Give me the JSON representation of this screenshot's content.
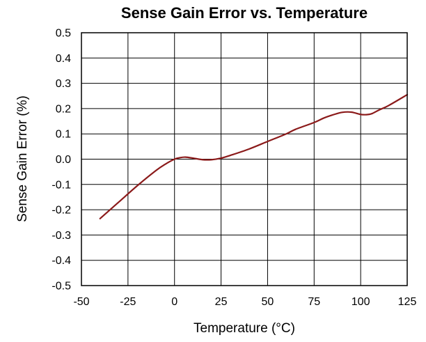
{
  "chart_data": {
    "type": "line",
    "title": "Sense Gain Error vs. Temperature",
    "xlabel": "Temperature (°C)",
    "ylabel": "Sense Gain Error (%)",
    "xlim": [
      -50,
      125
    ],
    "ylim": [
      -0.5,
      0.5
    ],
    "xticks": [
      -50,
      -25,
      0,
      25,
      50,
      75,
      100,
      125
    ],
    "yticks": [
      -0.5,
      -0.4,
      -0.3,
      -0.2,
      -0.1,
      0.0,
      0.1,
      0.2,
      0.3,
      0.4,
      0.5
    ],
    "x_tick_labels": [
      "-50",
      "-25",
      "0",
      "25",
      "50",
      "75",
      "100",
      "125"
    ],
    "y_tick_labels": [
      "-0.5",
      "-0.4",
      "-0.3",
      "-0.2",
      "-0.1",
      "0.0",
      "0.1",
      "0.2",
      "0.3",
      "0.4",
      "0.5"
    ],
    "grid": true,
    "legend": "none",
    "series": [
      {
        "color": "#8b1a1a",
        "x": [
          -40,
          -30,
          -20,
          -10,
          -5,
          0,
          3,
          6,
          10,
          15,
          20,
          25,
          30,
          40,
          50,
          60,
          65,
          75,
          80,
          85,
          90,
          95,
          100,
          103,
          106,
          110,
          115,
          125
        ],
        "y": [
          -0.235,
          -0.17,
          -0.105,
          -0.045,
          -0.02,
          0.0,
          0.006,
          0.008,
          0.004,
          -0.002,
          -0.002,
          0.004,
          0.015,
          0.04,
          0.07,
          0.1,
          0.118,
          0.145,
          0.162,
          0.175,
          0.185,
          0.186,
          0.177,
          0.176,
          0.18,
          0.195,
          0.212,
          0.255
        ]
      }
    ]
  }
}
